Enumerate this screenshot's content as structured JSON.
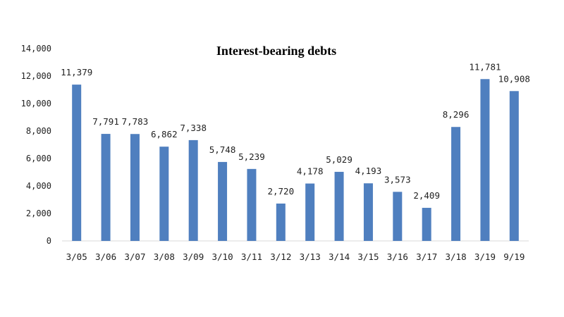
{
  "chart_data": {
    "type": "bar",
    "title": "Interest-bearing debts",
    "xlabel": "",
    "ylabel": "",
    "categories": [
      "3/05",
      "3/06",
      "3/07",
      "3/08",
      "3/09",
      "3/10",
      "3/11",
      "3/12",
      "3/13",
      "3/14",
      "3/15",
      "3/16",
      "3/17",
      "3/18",
      "3/19",
      "9/19"
    ],
    "values": [
      11379,
      7791,
      7783,
      6862,
      7338,
      5748,
      5239,
      2720,
      4178,
      5029,
      4193,
      3573,
      2409,
      8296,
      11781,
      10908
    ],
    "data_labels": [
      "11,379",
      "7,791",
      "7,783",
      "6,862",
      "7,338",
      "5,748",
      "5,239",
      "2,720",
      "4,178",
      "5,029",
      "4,193",
      "3,573",
      "2,409",
      "8,296",
      "11,781",
      "10,908"
    ],
    "ylim": [
      0,
      14000
    ],
    "yticks": [
      0,
      2000,
      4000,
      6000,
      8000,
      10000,
      12000,
      14000
    ],
    "ytick_labels": [
      "0",
      "2,000",
      "4,000",
      "6,000",
      "8,000",
      "10,000",
      "12,000",
      "14,000"
    ],
    "grid": false,
    "legend": "none",
    "bar_color": "#4f7fbf"
  }
}
